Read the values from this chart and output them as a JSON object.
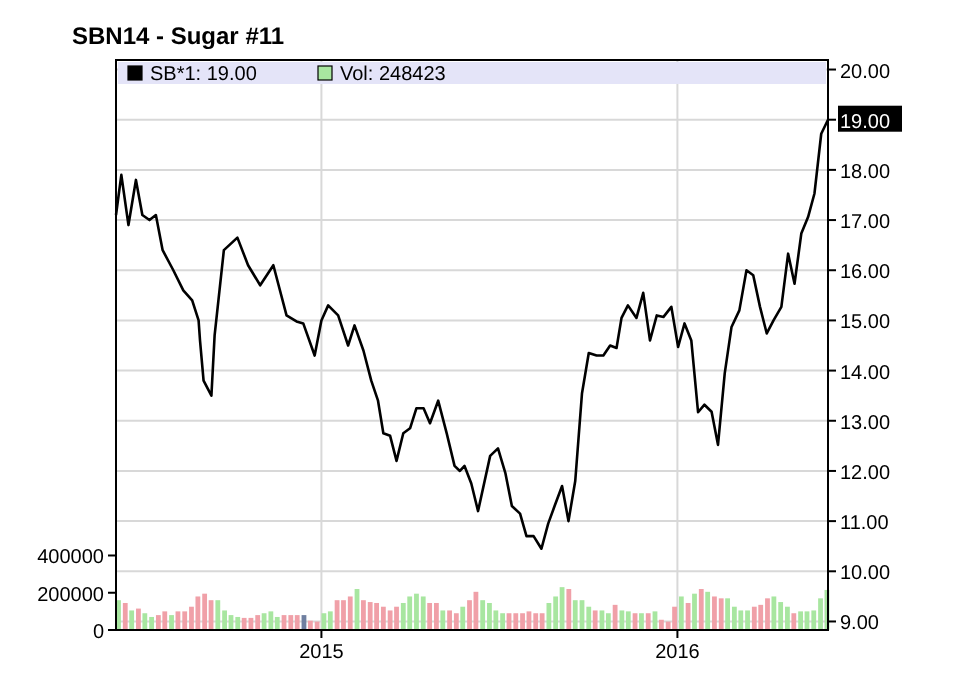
{
  "chart_data": {
    "type": "line",
    "title": "SBN14 - Sugar #11",
    "xlim": [
      2014.423,
      2016.423
    ],
    "xticks": [
      2015,
      2016
    ],
    "ylim": [
      8.83,
      20.19
    ],
    "yticks": [
      {
        "value": 9,
        "label": "9.00"
      },
      {
        "value": 10,
        "label": "10.00"
      },
      {
        "value": 11,
        "label": "11.00"
      },
      {
        "value": 12,
        "label": "12.00"
      },
      {
        "value": 13,
        "label": "13.00"
      },
      {
        "value": 14,
        "label": "14.00"
      },
      {
        "value": 15,
        "label": "15.00"
      },
      {
        "value": 16,
        "label": "16.00"
      },
      {
        "value": 17,
        "label": "17.00"
      },
      {
        "value": 18,
        "label": "18.00"
      },
      {
        "value": 19,
        "label": null
      },
      {
        "value": 20,
        "label": "20.00"
      }
    ],
    "y2lim": [
      0,
      3060000
    ],
    "y2ticks": [
      0,
      200000,
      400000
    ],
    "grid": true,
    "legend": "top left",
    "marker": "none",
    "line_style": "solid",
    "annotations": [
      {
        "text": "19.00",
        "x": 2016.423,
        "y": 19
      }
    ],
    "series": [
      {
        "name": "SB*1: 19.00",
        "color": "#000000",
        "x": [
          2014.423,
          2014.438,
          2014.458,
          2014.479,
          2014.497,
          2014.517,
          2014.535,
          2014.554,
          2014.584,
          2014.612,
          2014.637,
          2014.655,
          2014.659,
          2014.669,
          2014.691,
          2014.7,
          2014.726,
          2014.764,
          2014.794,
          2014.828,
          2014.865,
          2014.902,
          2014.93,
          2014.949,
          2014.981,
          2015.0,
          2015.019,
          2015.047,
          2015.075,
          2015.093,
          2015.118,
          2015.14,
          2015.159,
          2015.174,
          2015.193,
          2015.211,
          2015.23,
          2015.249,
          2015.267,
          2015.287,
          2015.305,
          2015.328,
          2015.352,
          2015.374,
          2015.389,
          2015.402,
          2015.421,
          2015.44,
          2015.474,
          2015.496,
          2015.517,
          2015.535,
          2015.558,
          2015.576,
          2015.596,
          2015.618,
          2015.637,
          2015.655,
          2015.676,
          2015.694,
          2015.713,
          2015.732,
          2015.751,
          2015.773,
          2015.792,
          2015.811,
          2015.829,
          2015.843,
          2015.861,
          2015.885,
          2015.904,
          2015.923,
          2015.942,
          2015.961,
          2015.983,
          2016.002,
          2016.02,
          2016.039,
          2016.058,
          2016.076,
          2016.096,
          2016.114,
          2016.133,
          2016.152,
          2016.174,
          2016.194,
          2016.213,
          2016.232,
          2016.251,
          2016.27,
          2016.292,
          2016.311,
          2016.329,
          2016.348,
          2016.367,
          2016.385,
          2016.404,
          2016.423
        ],
        "values": [
          17.1,
          17.9,
          16.9,
          17.8,
          17.1,
          17.0,
          17.1,
          16.4,
          16.0,
          15.6,
          15.4,
          15.0,
          14.6,
          13.8,
          13.5,
          14.7,
          16.4,
          16.65,
          16.1,
          15.7,
          16.1,
          15.1,
          14.98,
          14.94,
          14.3,
          15.0,
          15.3,
          15.1,
          14.5,
          14.9,
          14.4,
          13.8,
          13.4,
          12.75,
          12.7,
          12.2,
          12.75,
          12.85,
          13.25,
          13.25,
          12.95,
          13.4,
          12.75,
          12.1,
          12.0,
          12.1,
          11.75,
          11.2,
          12.3,
          12.45,
          11.95,
          11.3,
          11.15,
          10.7,
          10.7,
          10.45,
          10.95,
          11.3,
          11.7,
          11.0,
          11.8,
          13.55,
          14.35,
          14.3,
          14.3,
          14.5,
          14.45,
          15.05,
          15.3,
          15.05,
          15.55,
          14.6,
          15.1,
          15.07,
          15.27,
          14.47,
          14.94,
          14.6,
          13.17,
          13.32,
          13.18,
          12.52,
          13.95,
          14.87,
          15.2,
          16.0,
          15.9,
          15.27,
          14.74,
          15.0,
          15.27,
          16.33,
          15.73,
          16.73,
          17.06,
          17.53,
          18.72,
          19.0
        ]
      },
      {
        "name": "Vol: 248423",
        "type": "bar",
        "axis": "y2",
        "color": "#a8e6a0",
        "x": [
          2014.43,
          2014.449,
          2014.467,
          2014.486,
          2014.504,
          2014.523,
          2014.542,
          2014.56,
          2014.579,
          2014.597,
          2014.616,
          2014.635,
          2014.653,
          2014.672,
          2014.69,
          2014.709,
          2014.728,
          2014.746,
          2014.765,
          2014.783,
          2014.802,
          2014.821,
          2014.839,
          2014.858,
          2014.876,
          2014.895,
          2014.914,
          2014.932,
          2014.951,
          2014.969,
          2014.988,
          2015.007,
          2015.025,
          2015.044,
          2015.062,
          2015.081,
          2015.1,
          2015.118,
          2015.137,
          2015.155,
          2015.174,
          2015.193,
          2015.211,
          2015.23,
          2015.248,
          2015.267,
          2015.286,
          2015.304,
          2015.323,
          2015.341,
          2015.36,
          2015.379,
          2015.397,
          2015.416,
          2015.434,
          2015.453,
          2015.472,
          2015.49,
          2015.509,
          2015.527,
          2015.546,
          2015.565,
          2015.583,
          2015.602,
          2015.62,
          2015.639,
          2015.658,
          2015.676,
          2015.695,
          2015.713,
          2015.732,
          2015.751,
          2015.769,
          2015.788,
          2015.806,
          2015.825,
          2015.844,
          2015.862,
          2015.881,
          2015.899,
          2015.918,
          2015.937,
          2015.955,
          2015.974,
          2015.992,
          2016.011,
          2016.03,
          2016.048,
          2016.067,
          2016.085,
          2016.104,
          2016.123,
          2016.141,
          2016.16,
          2016.178,
          2016.197,
          2016.216,
          2016.234,
          2016.253,
          2016.271,
          2016.29,
          2016.309,
          2016.327,
          2016.346,
          2016.364,
          2016.383,
          2016.402,
          2016.42
        ],
        "values": [
          160000,
          145000,
          105000,
          115000,
          90000,
          70000,
          80000,
          100000,
          80000,
          100000,
          100000,
          125000,
          180000,
          195000,
          160000,
          160000,
          105000,
          80000,
          70000,
          65000,
          65000,
          80000,
          90000,
          100000,
          70000,
          80000,
          80000,
          80000,
          80000,
          50000,
          45000,
          90000,
          100000,
          160000,
          160000,
          180000,
          220000,
          160000,
          150000,
          145000,
          125000,
          105000,
          125000,
          145000,
          180000,
          195000,
          180000,
          145000,
          145000,
          105000,
          105000,
          90000,
          125000,
          160000,
          205000,
          160000,
          145000,
          105000,
          90000,
          90000,
          90000,
          90000,
          100000,
          90000,
          90000,
          145000,
          180000,
          230000,
          220000,
          160000,
          160000,
          125000,
          105000,
          105000,
          90000,
          135000,
          105000,
          100000,
          90000,
          90000,
          90000,
          100000,
          55000,
          45000,
          125000,
          180000,
          145000,
          195000,
          220000,
          205000,
          180000,
          170000,
          170000,
          125000,
          105000,
          105000,
          125000,
          135000,
          170000,
          180000,
          150000,
          125000,
          90000,
          100000,
          100000,
          105000,
          170000,
          215000
        ],
        "colors": [
          "#a8e6a0",
          "#f0a0a8",
          "#a8e6a0",
          "#f0a0a8",
          "#a8e6a0",
          "#a8e6a0",
          "#f0a0a8",
          "#f0a0a8",
          "#a8e6a0",
          "#f0a0a8",
          "#f0a0a8",
          "#f0a0a8",
          "#f0a0a8",
          "#f0a0a8",
          "#f0a0a8",
          "#a8e6a0",
          "#a8e6a0",
          "#a8e6a0",
          "#a8e6a0",
          "#f0a0a8",
          "#f0a0a8",
          "#f0a0a8",
          "#a8e6a0",
          "#a8e6a0",
          "#a8e6a0",
          "#f0a0a8",
          "#f0a0a8",
          "#f0a0a8",
          "#6f7fa0",
          "#f0a0a8",
          "#f0a0a8",
          "#a8e6a0",
          "#a8e6a0",
          "#f0a0a8",
          "#f0a0a8",
          "#f0a0a8",
          "#a8e6a0",
          "#f0a0a8",
          "#f0a0a8",
          "#f0a0a8",
          "#f0a0a8",
          "#f0a0a8",
          "#f0a0a8",
          "#a8e6a0",
          "#a8e6a0",
          "#a8e6a0",
          "#a8e6a0",
          "#f0a0a8",
          "#f0a0a8",
          "#a8e6a0",
          "#f0a0a8",
          "#f0a0a8",
          "#a8e6a0",
          "#f0a0a8",
          "#f0a0a8",
          "#a8e6a0",
          "#a8e6a0",
          "#a8e6a0",
          "#a8e6a0",
          "#f0a0a8",
          "#f0a0a8",
          "#f0a0a8",
          "#f0a0a8",
          "#f0a0a8",
          "#f0a0a8",
          "#a8e6a0",
          "#a8e6a0",
          "#a8e6a0",
          "#f0a0a8",
          "#a8e6a0",
          "#a8e6a0",
          "#a8e6a0",
          "#f0a0a8",
          "#a8e6a0",
          "#a8e6a0",
          "#f0a0a8",
          "#a8e6a0",
          "#a8e6a0",
          "#f0a0a8",
          "#a8e6a0",
          "#f0a0a8",
          "#a8e6a0",
          "#f0a0a8",
          "#f0a0a8",
          "#f0a0a8",
          "#a8e6a0",
          "#f0a0a8",
          "#a8e6a0",
          "#f0a0a8",
          "#a8e6a0",
          "#f0a0a8",
          "#f0a0a8",
          "#a8e6a0",
          "#a8e6a0",
          "#a8e6a0",
          "#a8e6a0",
          "#f0a0a8",
          "#f0a0a8",
          "#f0a0a8",
          "#a8e6a0",
          "#a8e6a0",
          "#a8e6a0",
          "#f0a0a8",
          "#a8e6a0",
          "#a8e6a0",
          "#a8e6a0",
          "#a8e6a0",
          "#a8e6a0"
        ]
      }
    ]
  }
}
